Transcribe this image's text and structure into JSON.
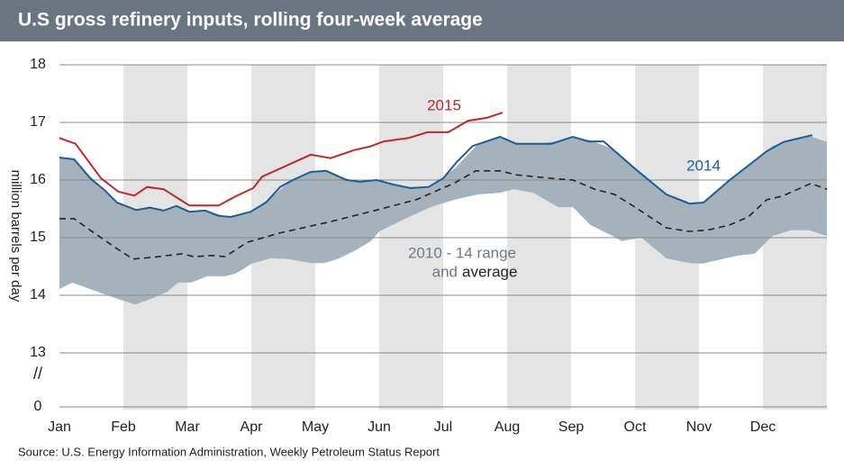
{
  "chart_data": {
    "type": "line",
    "title": "U.S gross refinery inputs, rolling four-week average",
    "y_label": "million barrels per day",
    "source": "Source: U.S. Energy Information Administration, Weekly Petroleum Status Report",
    "xlim": [
      0,
      12
    ],
    "xticks": [
      {
        "value": 0,
        "label": "Jan"
      },
      {
        "value": 1,
        "label": "Feb"
      },
      {
        "value": 2,
        "label": "Mar"
      },
      {
        "value": 3,
        "label": "Apr"
      },
      {
        "value": 4,
        "label": "May"
      },
      {
        "value": 5,
        "label": "Jun"
      },
      {
        "value": 6,
        "label": "Jul"
      },
      {
        "value": 7,
        "label": "Aug"
      },
      {
        "value": 8,
        "label": "Sep"
      },
      {
        "value": 9,
        "label": "Oct"
      },
      {
        "value": 10,
        "label": "Nov"
      },
      {
        "value": 11,
        "label": "Dec"
      }
    ],
    "ylim": [
      0,
      18
    ],
    "y_axis_break": [
      0,
      13
    ],
    "yticks": [
      0,
      13,
      14,
      15,
      16,
      17,
      18
    ],
    "grid": true,
    "range": {
      "name": "2010 - 14 range",
      "color": "#a6b2bb",
      "x": [
        0,
        0.2,
        0.62,
        0.9,
        1.18,
        1.44,
        1.68,
        1.86,
        2.06,
        2.31,
        2.59,
        2.76,
        3.01,
        3.3,
        3.58,
        3.93,
        4.14,
        4.35,
        4.63,
        4.87,
        5.0,
        5.41,
        5.8,
        6.18,
        6.54,
        6.89,
        7.1,
        7.41,
        7.8,
        8.03,
        8.3,
        8.65,
        8.79,
        9.0,
        9.1,
        9.49,
        9.85,
        10.06,
        10.62,
        10.87,
        11.15,
        11.44,
        11.72,
        12.0
      ],
      "low": [
        14.11,
        14.22,
        14.05,
        13.94,
        13.84,
        13.94,
        14.06,
        14.22,
        14.22,
        14.33,
        14.33,
        14.38,
        14.55,
        14.64,
        14.63,
        14.56,
        14.56,
        14.63,
        14.78,
        14.94,
        15.11,
        15.33,
        15.53,
        15.66,
        15.75,
        15.78,
        15.84,
        15.78,
        15.53,
        15.53,
        15.22,
        15.03,
        14.94,
        14.98,
        15.0,
        14.64,
        14.56,
        14.55,
        14.69,
        14.72,
        15.03,
        15.13,
        15.13,
        15.03
      ],
      "high": [
        16.39,
        16.37,
        15.91,
        15.61,
        15.48,
        15.51,
        15.48,
        15.54,
        15.45,
        15.47,
        15.37,
        15.38,
        15.47,
        15.69,
        15.95,
        16.14,
        16.16,
        16.07,
        15.98,
        15.99,
        15.99,
        15.88,
        15.89,
        16.2,
        16.62,
        16.75,
        16.65,
        16.63,
        16.67,
        16.75,
        16.69,
        16.54,
        16.4,
        16.2,
        16.12,
        15.75,
        15.59,
        15.61,
        16.12,
        16.34,
        16.59,
        16.71,
        16.77,
        16.66
      ]
    },
    "annotation": "and",
    "series": [
      {
        "name": "2015",
        "color": "#c1272d",
        "dashed": false,
        "x": [
          0,
          0.25,
          0.65,
          0.92,
          1.17,
          1.37,
          1.63,
          2.03,
          2.49,
          2.76,
          3.03,
          3.17,
          3.93,
          4.24,
          4.61,
          4.85,
          5.07,
          5.46,
          5.75,
          6.08,
          6.39,
          6.68,
          6.93
        ],
        "values": [
          16.73,
          16.63,
          16.03,
          15.8,
          15.73,
          15.88,
          15.84,
          15.56,
          15.56,
          15.72,
          15.86,
          16.06,
          16.44,
          16.38,
          16.52,
          16.58,
          16.67,
          16.73,
          16.83,
          16.83,
          17.03,
          17.08,
          17.17
        ]
      },
      {
        "name": "2014",
        "color": "#1d5e96",
        "dashed": false,
        "x": [
          0,
          0.23,
          0.49,
          0.69,
          0.9,
          1.2,
          1.41,
          1.63,
          1.83,
          2.03,
          2.28,
          2.48,
          2.68,
          2.99,
          3.23,
          3.45,
          3.65,
          3.93,
          4.17,
          4.49,
          4.7,
          4.96,
          5.23,
          5.49,
          5.77,
          6.0,
          6.21,
          6.46,
          6.89,
          7.14,
          7.69,
          8.03,
          8.27,
          8.51,
          9.04,
          9.49,
          9.85,
          10.07,
          10.48,
          11.06,
          11.32,
          11.77
        ],
        "values": [
          16.39,
          16.36,
          16.02,
          15.84,
          15.61,
          15.48,
          15.52,
          15.47,
          15.55,
          15.45,
          15.47,
          15.38,
          15.36,
          15.45,
          15.61,
          15.88,
          16.0,
          16.14,
          16.16,
          16.0,
          15.97,
          16.0,
          15.92,
          15.86,
          15.88,
          16.03,
          16.31,
          16.59,
          16.75,
          16.63,
          16.63,
          16.75,
          16.67,
          16.67,
          16.16,
          15.75,
          15.59,
          15.61,
          16.0,
          16.5,
          16.66,
          16.78
        ]
      },
      {
        "name": "average",
        "color": "#222222",
        "dashed": true,
        "x": [
          0,
          0.23,
          0.48,
          0.87,
          1.15,
          1.46,
          1.92,
          2.1,
          2.39,
          2.59,
          2.94,
          3.44,
          4.21,
          4.96,
          5.58,
          6.18,
          6.51,
          6.89,
          7.14,
          7.69,
          8.03,
          8.37,
          8.68,
          9.0,
          9.49,
          9.85,
          10.13,
          10.48,
          10.77,
          11.06,
          11.3,
          11.75,
          12.0
        ],
        "values": [
          15.33,
          15.33,
          15.13,
          14.83,
          14.63,
          14.66,
          14.72,
          14.67,
          14.69,
          14.67,
          14.92,
          15.08,
          15.27,
          15.48,
          15.66,
          15.95,
          16.16,
          16.16,
          16.09,
          16.03,
          16.0,
          15.84,
          15.75,
          15.53,
          15.17,
          15.11,
          15.13,
          15.22,
          15.36,
          15.66,
          15.72,
          15.94,
          15.84
        ]
      }
    ]
  }
}
